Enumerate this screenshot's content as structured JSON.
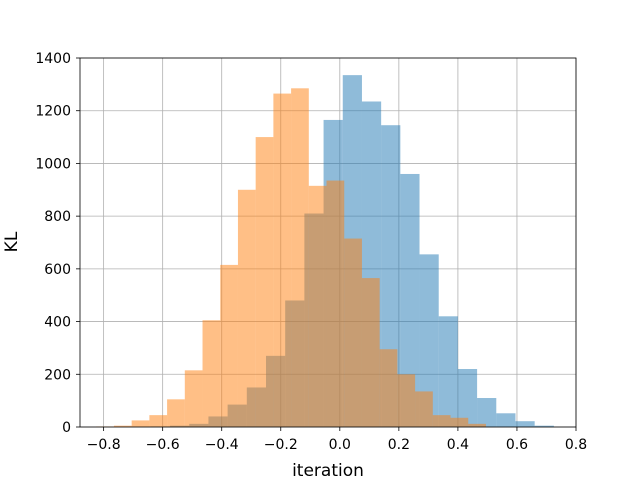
{
  "chart_data": {
    "type": "bar",
    "subtype": "overlaid-histogram",
    "xlabel": "iteration",
    "ylabel": "KL",
    "xlim": [
      -0.88,
      0.8
    ],
    "ylim": [
      0,
      1400
    ],
    "xticks": [
      -0.8,
      -0.6,
      -0.4,
      -0.2,
      0.0,
      0.2,
      0.4,
      0.6,
      0.8
    ],
    "xtick_labels": [
      "−0.8",
      "−0.6",
      "−0.4",
      "−0.2",
      "0.0",
      "0.2",
      "0.4",
      "0.6",
      "0.8"
    ],
    "yticks": [
      0,
      200,
      400,
      600,
      800,
      1000,
      1200,
      1400
    ],
    "ytick_labels": [
      "0",
      "200",
      "400",
      "600",
      "800",
      "1000",
      "1200",
      "1400"
    ],
    "grid": true,
    "series": [
      {
        "color": "#1f77b4",
        "alpha": 0.5,
        "bin_edges": [
          -0.64,
          -0.575,
          -0.51,
          -0.445,
          -0.38,
          -0.315,
          -0.25,
          -0.185,
          -0.12,
          -0.055,
          0.01,
          0.075,
          0.14,
          0.205,
          0.27,
          0.335,
          0.4,
          0.465,
          0.53,
          0.595,
          0.66,
          0.725
        ],
        "counts": [
          2,
          5,
          12,
          40,
          85,
          150,
          270,
          480,
          810,
          1165,
          1335,
          1235,
          1145,
          960,
          655,
          420,
          220,
          110,
          52,
          22,
          5
        ]
      },
      {
        "color": "#ff7f0e",
        "alpha": 0.5,
        "bin_edges": [
          -0.825,
          -0.765,
          -0.705,
          -0.645,
          -0.585,
          -0.525,
          -0.465,
          -0.405,
          -0.345,
          -0.285,
          -0.225,
          -0.165,
          -0.105,
          -0.045,
          0.015,
          0.075,
          0.135,
          0.195,
          0.255,
          0.315,
          0.375,
          0.435,
          0.495
        ],
        "counts": [
          2,
          5,
          25,
          45,
          105,
          215,
          405,
          615,
          900,
          1100,
          1265,
          1285,
          915,
          935,
          715,
          565,
          295,
          200,
          135,
          45,
          35,
          12
        ]
      }
    ]
  }
}
